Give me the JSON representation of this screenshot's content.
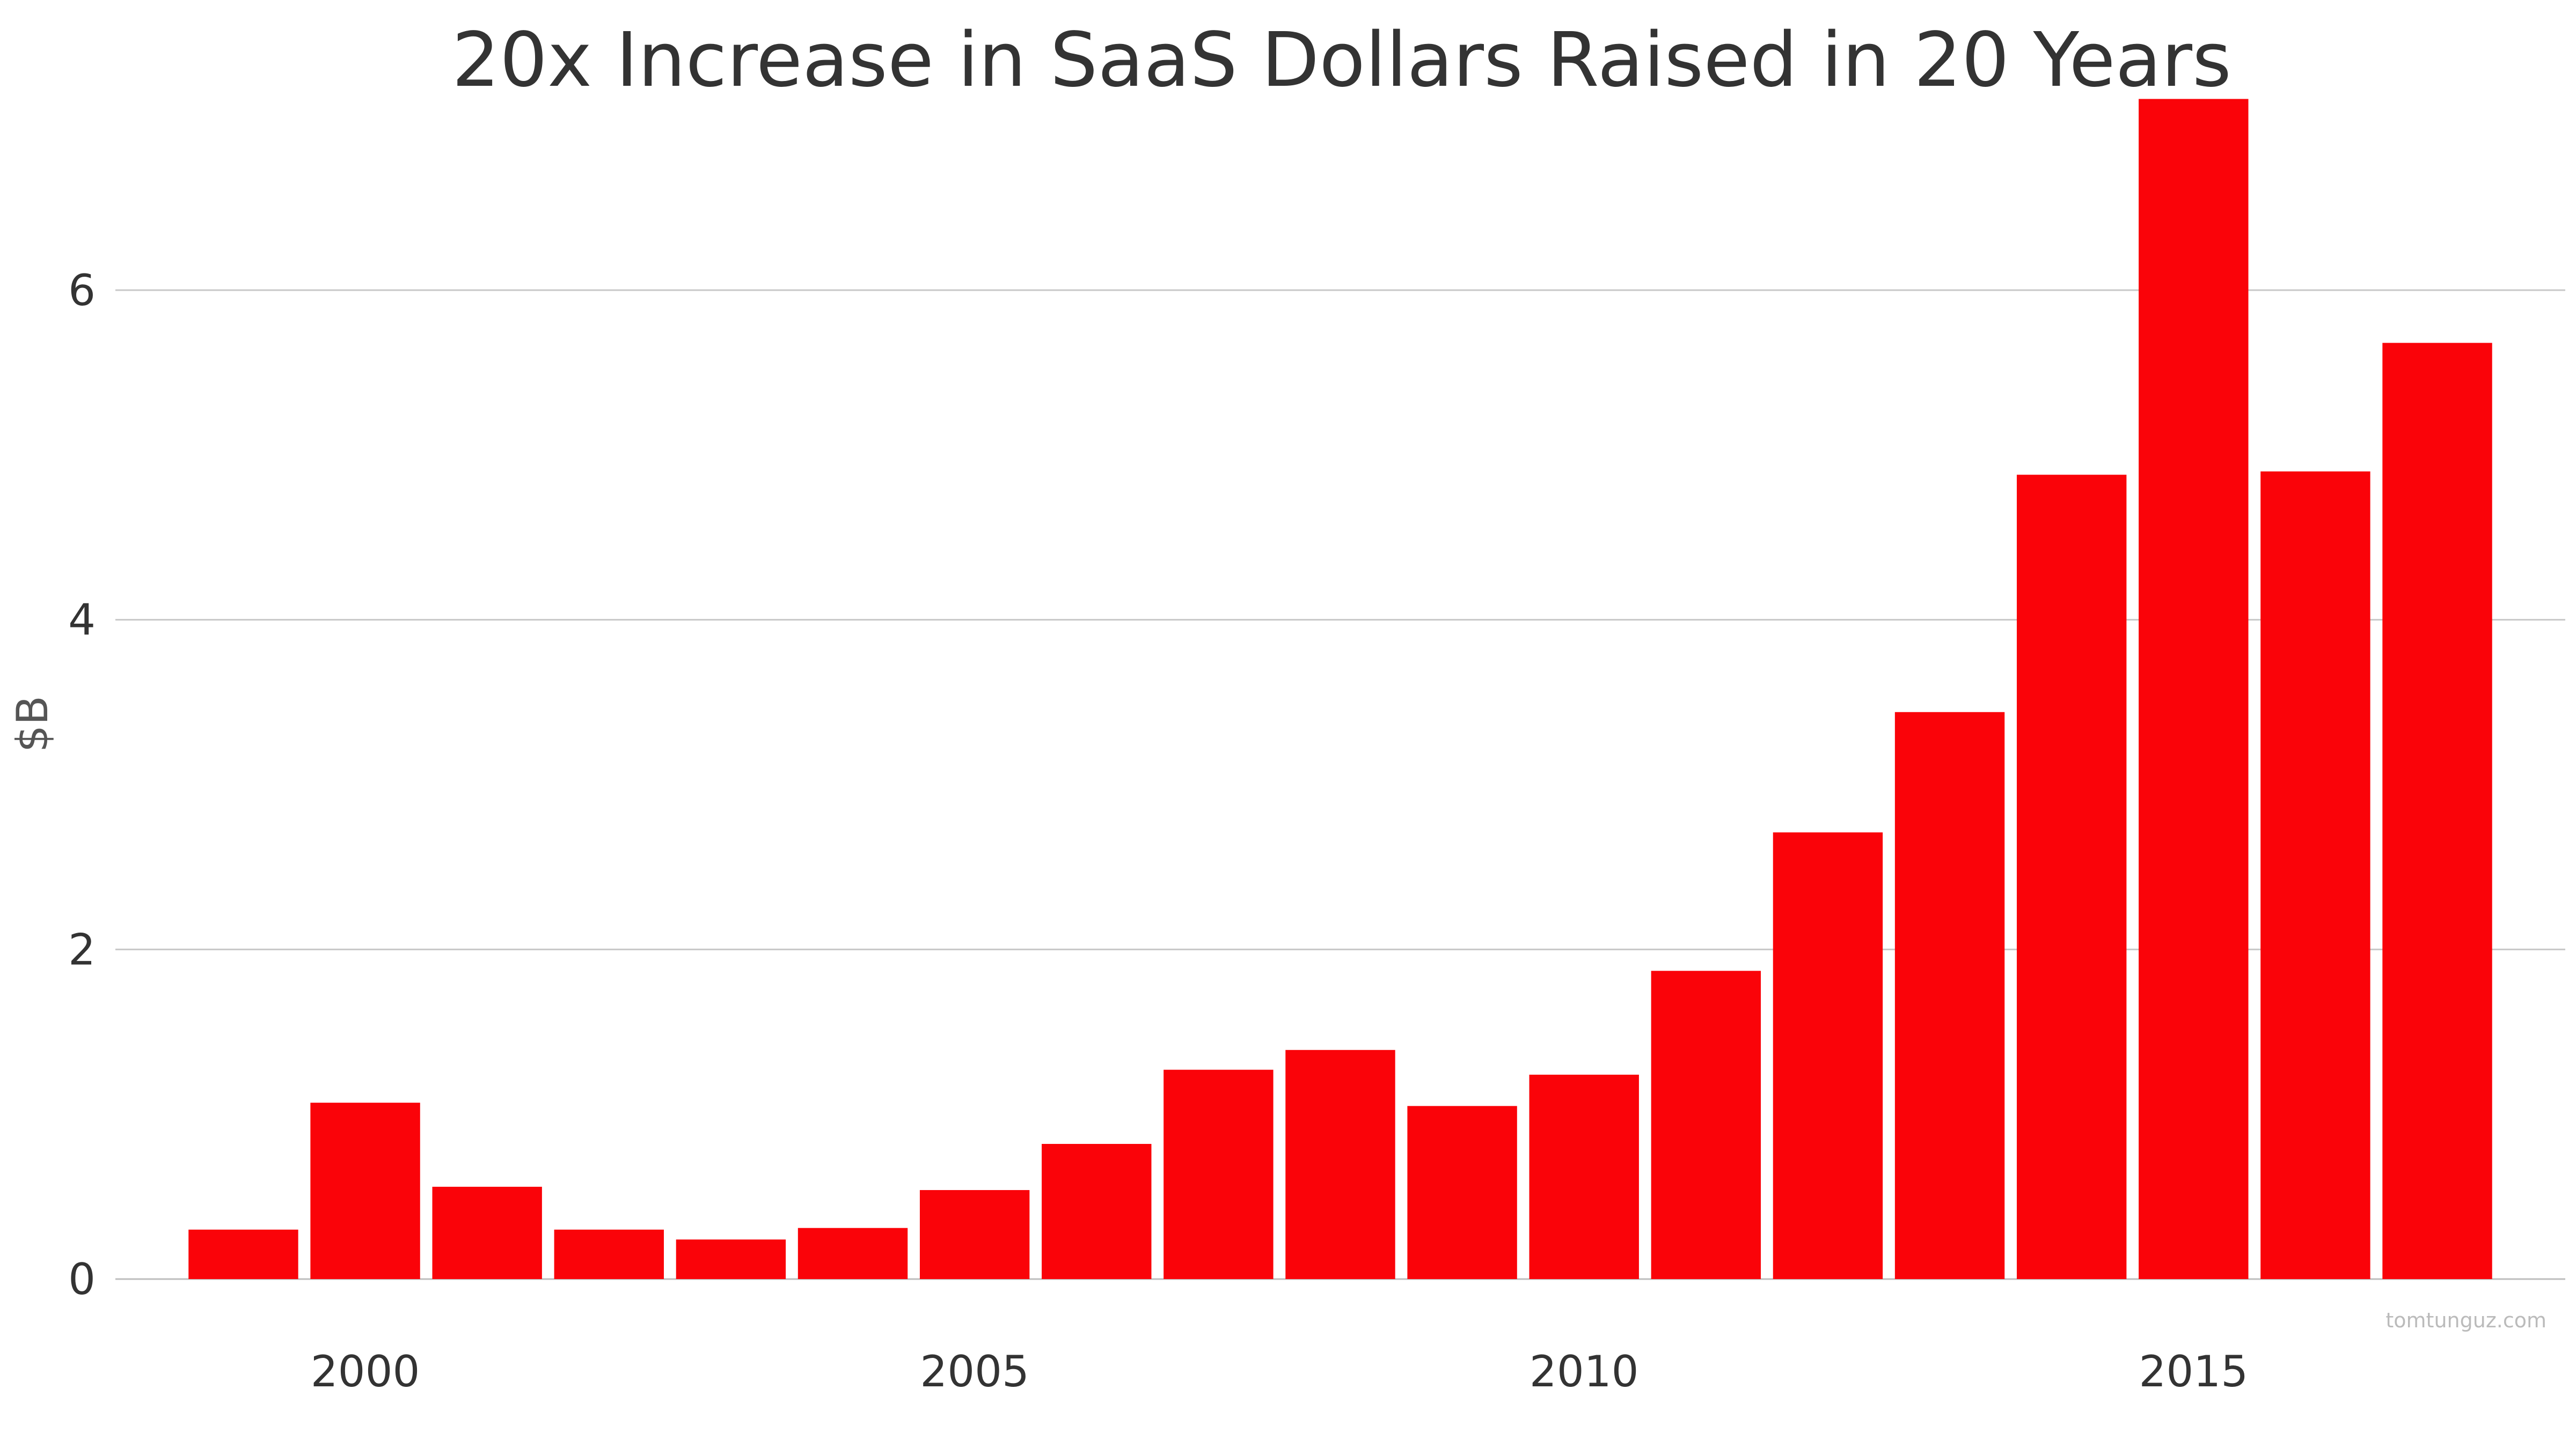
{
  "chart_data": {
    "type": "bar",
    "title": "20x Increase in SaaS Dollars Raised in 20 Years",
    "ylabel": "$B",
    "xlabel": "",
    "x": [
      1999,
      2000,
      2001,
      2002,
      2003,
      2004,
      2005,
      2006,
      2007,
      2008,
      2009,
      2010,
      2011,
      2012,
      2013,
      2014,
      2015,
      2016,
      2017
    ],
    "values": [
      0.3,
      1.07,
      0.56,
      0.3,
      0.24,
      0.31,
      0.54,
      0.82,
      1.27,
      1.39,
      1.05,
      1.24,
      1.87,
      2.71,
      3.44,
      4.88,
      7.16,
      4.9,
      5.68
    ],
    "ylim": [
      0,
      7.5
    ],
    "xlim": [
      1997.95,
      2018.05
    ],
    "yticks": [
      0,
      2,
      4,
      6
    ],
    "xticks": [
      2000,
      2005,
      2010,
      2015
    ],
    "grid": true,
    "bar_color": "#fa0309",
    "watermark": "tomtunguz.com"
  }
}
